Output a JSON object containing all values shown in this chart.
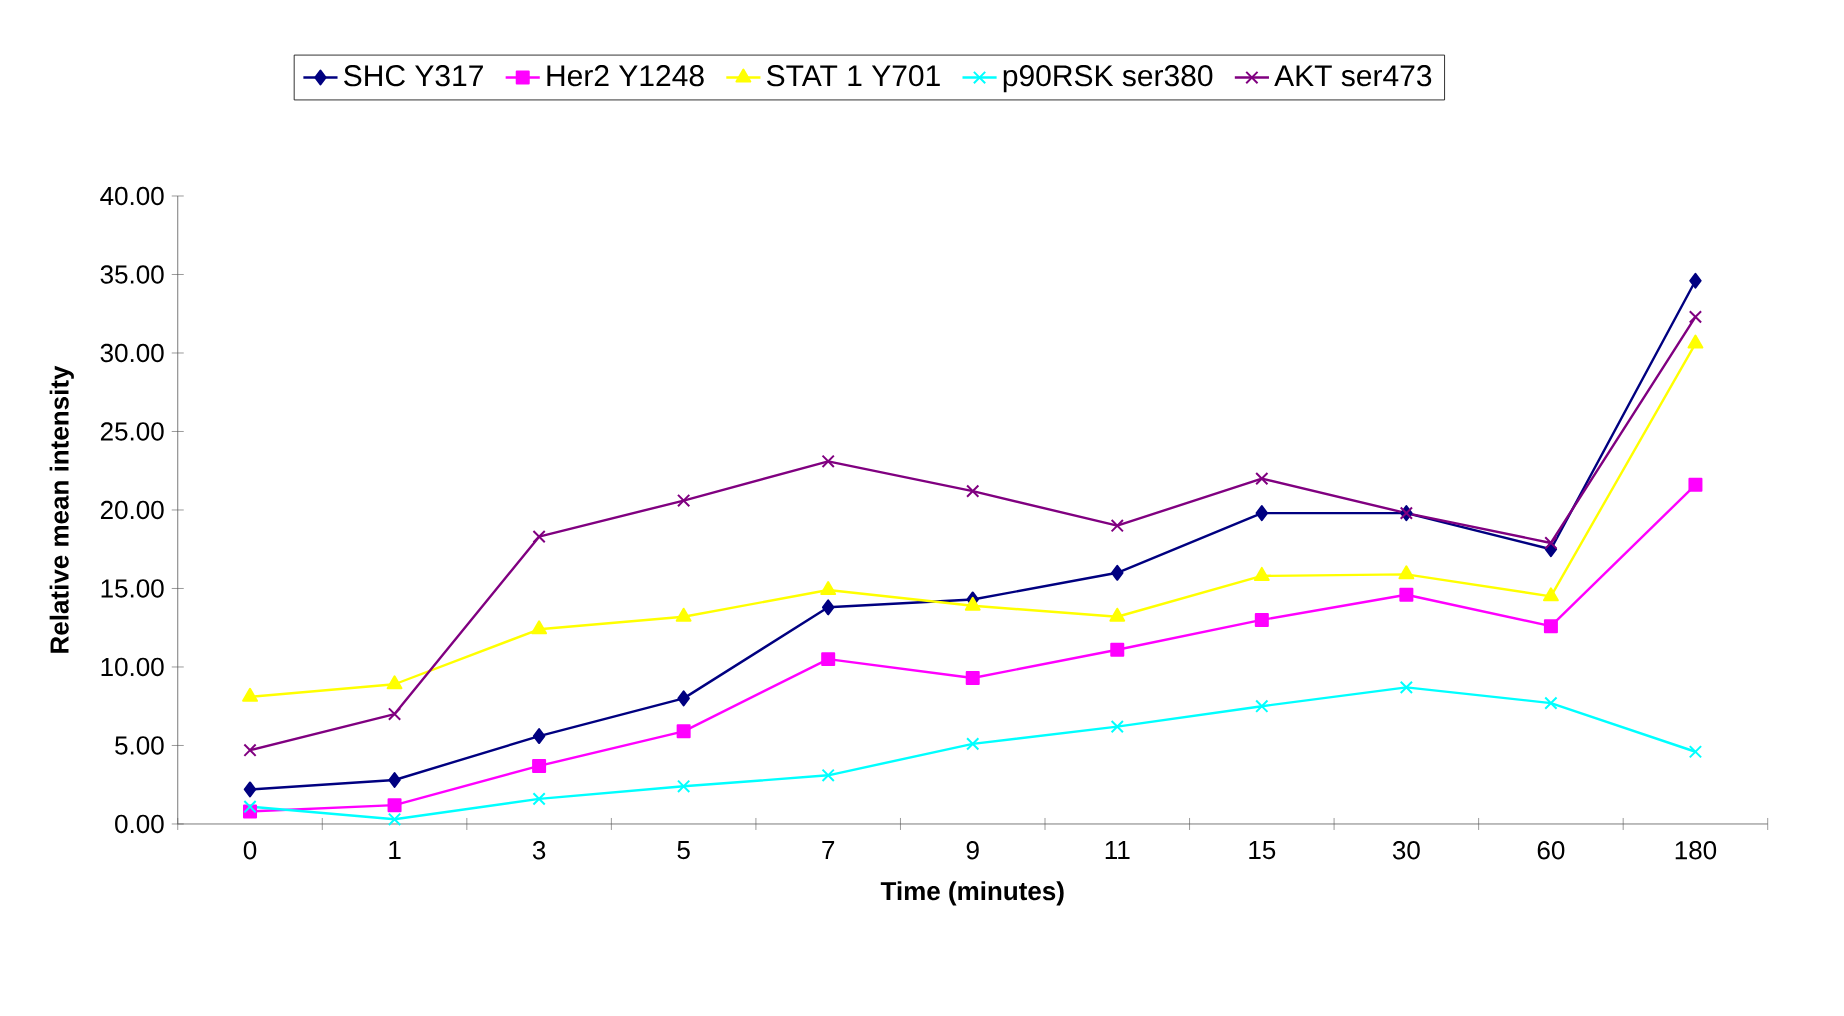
{
  "chart_data": {
    "type": "line",
    "xlabel": "Time (minutes)",
    "ylabel": "Relative mean intensity",
    "categories": [
      "0",
      "1",
      "3",
      "5",
      "7",
      "9",
      "11",
      "15",
      "30",
      "60",
      "180"
    ],
    "ylim": [
      0,
      40
    ],
    "yticks": [
      {
        "value": 0,
        "label": "0.00"
      },
      {
        "value": 5,
        "label": "5.00"
      },
      {
        "value": 10,
        "label": "10.00"
      },
      {
        "value": 15,
        "label": "15.00"
      },
      {
        "value": 20,
        "label": "20.00"
      },
      {
        "value": 25,
        "label": "25.00"
      },
      {
        "value": 30,
        "label": "30.00"
      },
      {
        "value": 35,
        "label": "35.00"
      },
      {
        "value": 40,
        "label": "40.00"
      }
    ],
    "legend": "top",
    "grid": false,
    "line_style": "solid",
    "series": [
      {
        "name": "SHC Y317",
        "color": "#000080",
        "marker": "diamond",
        "values": [
          2.2,
          2.8,
          5.6,
          8.0,
          13.8,
          14.3,
          16.0,
          19.8,
          19.8,
          17.5,
          34.6
        ]
      },
      {
        "name": "Her2 Y1248",
        "color": "#ff00ff",
        "marker": "square",
        "values": [
          0.8,
          1.2,
          3.7,
          5.9,
          10.5,
          9.3,
          11.1,
          13.0,
          14.6,
          12.6,
          21.6
        ]
      },
      {
        "name": "STAT 1 Y701",
        "color": "#ffff00",
        "marker": "triangle",
        "values": [
          8.1,
          8.9,
          12.4,
          13.2,
          14.9,
          13.9,
          13.2,
          15.8,
          15.9,
          14.5,
          30.6
        ]
      },
      {
        "name": "p90RSK ser380",
        "color": "#00ffff",
        "marker": "cross",
        "values": [
          1.1,
          0.3,
          1.6,
          2.4,
          3.1,
          5.1,
          6.2,
          7.5,
          8.7,
          7.7,
          4.6
        ]
      },
      {
        "name": "AKT ser473",
        "color": "#800080",
        "marker": "cross",
        "values": [
          4.7,
          7.0,
          18.3,
          20.6,
          23.1,
          21.2,
          19.0,
          22.0,
          19.8,
          17.9,
          32.3
        ]
      }
    ]
  }
}
